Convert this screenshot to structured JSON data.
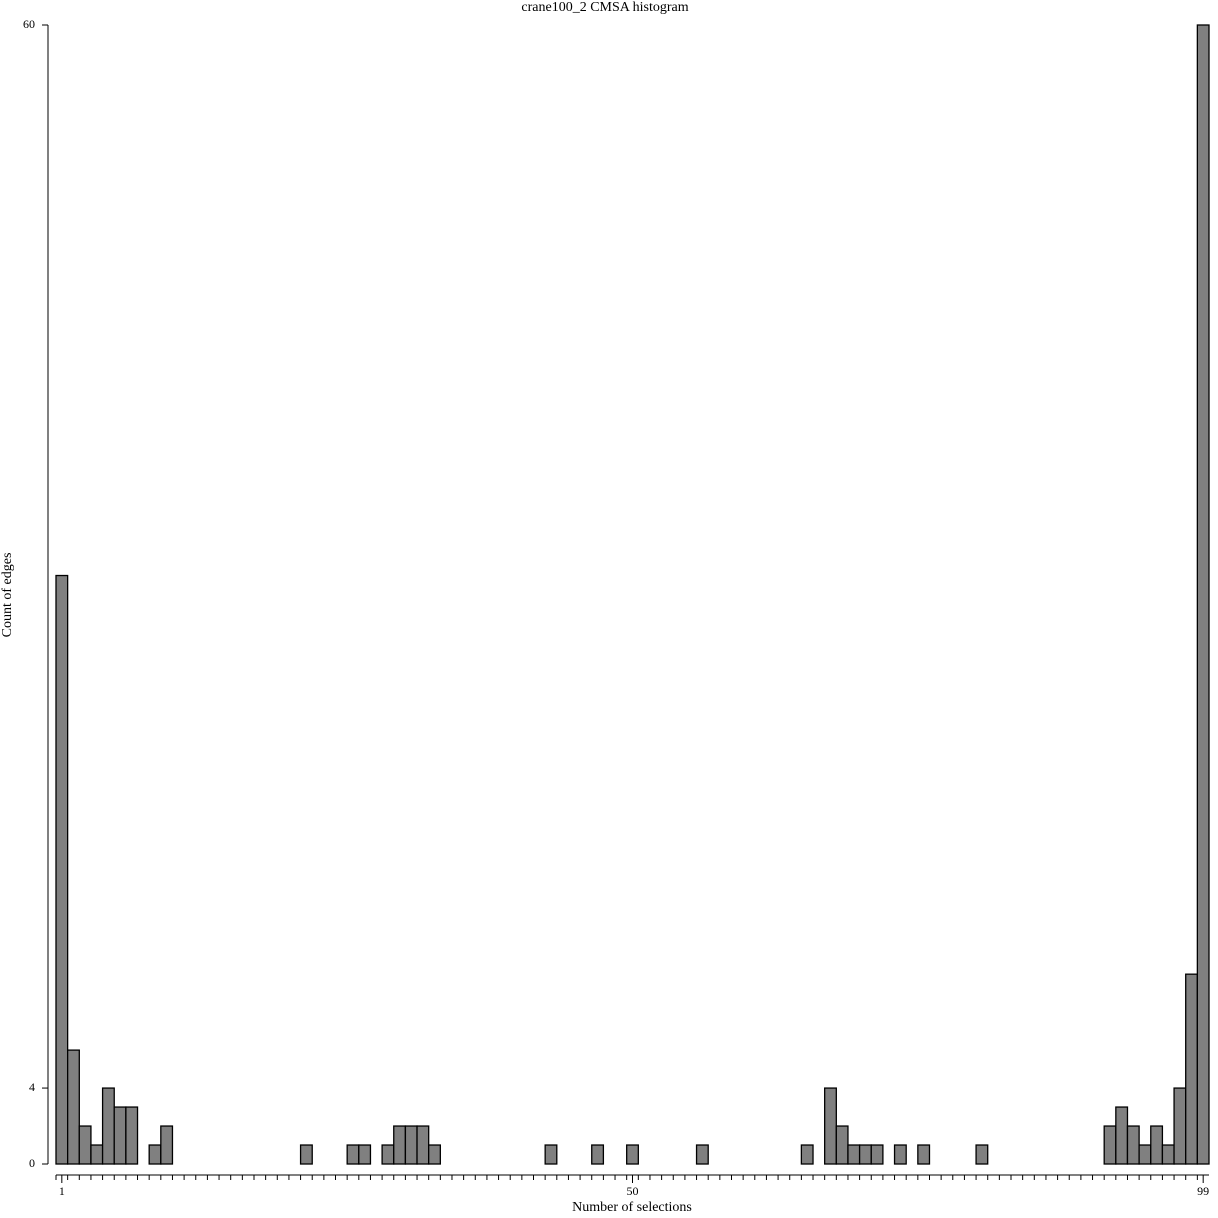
{
  "chart_data": {
    "type": "histogram",
    "title": "crane100_2 CMSA histogram",
    "x_label": "Number of selections",
    "y_label": "Count of edges",
    "bins": [
      0.5,
      1.5,
      2.5,
      3.5,
      4.5,
      5.5,
      6.5,
      7.5,
      8.5,
      9.5,
      10.5,
      11.5,
      12.5,
      13.5,
      14.5,
      15.5,
      16.5,
      17.5,
      18.5,
      19.5,
      20.5,
      21.5,
      22.5,
      23.5,
      24.5,
      25.5,
      26.5,
      27.5,
      28.5,
      29.5,
      30.5,
      31.5,
      32.5,
      33.5,
      34.5,
      35.5,
      36.5,
      37.5,
      38.5,
      39.5,
      40.5,
      41.5,
      42.5,
      43.5,
      44.5,
      45.5,
      46.5,
      47.5,
      48.5,
      49.5,
      50.5,
      51.5,
      52.5,
      53.5,
      54.5,
      55.5,
      56.5,
      57.5,
      58.5,
      59.5,
      60.5,
      61.5,
      62.5,
      63.5,
      64.5,
      65.5,
      66.5,
      67.5,
      68.5,
      69.5,
      70.5,
      71.5,
      72.5,
      73.5,
      74.5,
      75.5,
      76.5,
      77.5,
      78.5,
      79.5,
      80.5,
      81.5,
      82.5,
      83.5,
      84.5,
      85.5,
      86.5,
      87.5,
      88.5,
      89.5,
      90.5,
      91.5,
      92.5,
      93.5,
      94.5,
      95.5,
      96.5,
      97.5,
      98.5,
      99.5
    ],
    "values": [
      31,
      6,
      2,
      1,
      4,
      3,
      3,
      0,
      1,
      2,
      0,
      0,
      0,
      0,
      0,
      0,
      0,
      0,
      0,
      0,
      0,
      1,
      0,
      0,
      0,
      1,
      1,
      0,
      1,
      2,
      2,
      2,
      1,
      0,
      0,
      0,
      0,
      0,
      0,
      0,
      0,
      0,
      1,
      0,
      0,
      0,
      1,
      0,
      0,
      1,
      0,
      0,
      0,
      0,
      0,
      1,
      0,
      0,
      0,
      0,
      0,
      0,
      0,
      0,
      1,
      0,
      4,
      2,
      1,
      1,
      1,
      0,
      1,
      0,
      1,
      0,
      0,
      0,
      0,
      1,
      0,
      0,
      0,
      0,
      0,
      0,
      0,
      0,
      0,
      0,
      2,
      3,
      2,
      1,
      2,
      1,
      4,
      10,
      60
    ],
    "color": "#808080",
    "edge_color": "#000000",
    "xlim": [
      0.5,
      99.5
    ],
    "xticks": [
      1,
      50,
      99
    ],
    "ylim": [
      0,
      60
    ],
    "yticks": [
      0,
      4,
      60
    ],
    "grid": false
  }
}
